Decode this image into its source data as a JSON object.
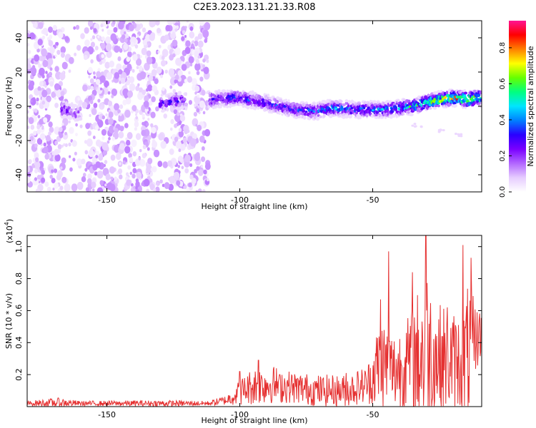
{
  "title": "C2E3.2023.131.21.33.R08",
  "colors": {
    "snr_line": "#e53030",
    "axis": "#000000",
    "colormap": [
      "#ffffff",
      "#e6ccff",
      "#b266ff",
      "#7a00ff",
      "#2a00ff",
      "#0080ff",
      "#00e5ff",
      "#00ff80",
      "#66ff00",
      "#ffff00",
      "#ff8000",
      "#ff0000",
      "#ff1493"
    ]
  },
  "chart_data": [
    {
      "type": "heatmap",
      "title": "C2E3.2023.131.21.33.R08",
      "xlabel": "Height of straight line (km)",
      "ylabel": "Frequency (Hz)",
      "xlim": [
        -180,
        -9
      ],
      "ylim": [
        -50,
        50
      ],
      "x_ticks": [
        -150,
        -100,
        -50
      ],
      "x_tick_labels": [
        "-150",
        "-100",
        "-50"
      ],
      "y_ticks": [
        -40,
        -20,
        0,
        20,
        40
      ],
      "y_tick_labels": [
        "-40",
        "-20",
        "0",
        "20",
        "40"
      ],
      "colorbar": {
        "label": "Normalized spectral amplitude",
        "range": [
          0,
          0.95
        ],
        "ticks": [
          0.0,
          0.2,
          0.4,
          0.6,
          0.8
        ],
        "tick_labels": [
          "0.0",
          "0.2",
          "0.4",
          "0.6",
          "0.8"
        ]
      },
      "noise_region": {
        "x": [
          -180,
          -112
        ],
        "freq": [
          -50,
          50
        ],
        "amplitude_range": [
          0.02,
          0.14
        ]
      },
      "ridge": [
        {
          "x": -165,
          "freq": -2,
          "amp": 0.3
        },
        {
          "x": -162,
          "freq": -4,
          "amp": 0.25
        },
        {
          "x": -128,
          "freq": 2,
          "amp": 0.3
        },
        {
          "x": -124,
          "freq": 3,
          "amp": 0.3
        },
        {
          "x": -110,
          "freq": 4,
          "amp": 0.35
        },
        {
          "x": -100,
          "freq": 5,
          "amp": 0.4
        },
        {
          "x": -90,
          "freq": 2,
          "amp": 0.35
        },
        {
          "x": -80,
          "freq": -2,
          "amp": 0.35
        },
        {
          "x": -72,
          "freq": -3,
          "amp": 0.4
        },
        {
          "x": -65,
          "freq": -1,
          "amp": 0.45
        },
        {
          "x": -55,
          "freq": -2,
          "amp": 0.4
        },
        {
          "x": -45,
          "freq": -2,
          "amp": 0.45
        },
        {
          "x": -35,
          "freq": 0,
          "amp": 0.55
        },
        {
          "x": -28,
          "freq": 3,
          "amp": 0.7
        },
        {
          "x": -20,
          "freq": 5,
          "amp": 0.85
        },
        {
          "x": -14,
          "freq": 4,
          "amp": 0.8
        },
        {
          "x": -10,
          "freq": 5,
          "amp": 0.75
        }
      ],
      "ridge_halfwidth_hz": 3,
      "faint_trail": [
        {
          "x": -33,
          "freq": -11
        },
        {
          "x": -25,
          "freq": -14
        },
        {
          "x": -18,
          "freq": -17
        }
      ]
    },
    {
      "type": "line",
      "xlabel": "Height of straight line (km)",
      "ylabel": "SNR (10 * v/v)",
      "y_multiplier": "(x10",
      "y_multiplier_exp": "4",
      "y_multiplier_close": ")",
      "xlim": [
        -180,
        -9
      ],
      "ylim": [
        0,
        1.07
      ],
      "x_ticks": [
        -150,
        -100,
        -50
      ],
      "x_tick_labels": [
        "-150",
        "-100",
        "-50"
      ],
      "y_ticks": [
        0.2,
        0.4,
        0.6,
        0.8,
        1.0
      ],
      "y_tick_labels": [
        "0.2",
        "0.4",
        "0.6",
        "0.8",
        "1.0"
      ],
      "series": [
        {
          "values_envelope": [
            {
              "x": -180,
              "mean": 0.02,
              "amp": 0.015
            },
            {
              "x": -168,
              "mean": 0.025,
              "amp": 0.03
            },
            {
              "x": -160,
              "mean": 0.02,
              "amp": 0.015
            },
            {
              "x": -130,
              "mean": 0.02,
              "amp": 0.02
            },
            {
              "x": -112,
              "mean": 0.02,
              "amp": 0.015
            },
            {
              "x": -105,
              "mean": 0.04,
              "amp": 0.03
            },
            {
              "x": -100,
              "mean": 0.09,
              "amp": 0.08
            },
            {
              "x": -95,
              "mean": 0.13,
              "amp": 0.12
            },
            {
              "x": -88,
              "mean": 0.14,
              "amp": 0.12
            },
            {
              "x": -80,
              "mean": 0.12,
              "amp": 0.1
            },
            {
              "x": -70,
              "mean": 0.1,
              "amp": 0.1
            },
            {
              "x": -60,
              "mean": 0.1,
              "amp": 0.1
            },
            {
              "x": -52,
              "mean": 0.14,
              "amp": 0.12
            },
            {
              "x": -47,
              "mean": 0.28,
              "amp": 0.3
            },
            {
              "x": -42,
              "mean": 0.22,
              "amp": 0.25
            },
            {
              "x": -36,
              "mean": 0.28,
              "amp": 0.3
            },
            {
              "x": -30,
              "mean": 0.35,
              "amp": 0.55
            },
            {
              "x": -25,
              "mean": 0.3,
              "amp": 0.35
            },
            {
              "x": -18,
              "mean": 0.28,
              "amp": 0.3
            },
            {
              "x": -14,
              "mean": 0.32,
              "amp": 0.45
            },
            {
              "x": -10,
              "mean": 0.45,
              "amp": 0.15
            }
          ],
          "peaks": [
            {
              "x": -100,
              "y": 0.22
            },
            {
              "x": -93,
              "y": 0.29
            },
            {
              "x": -85,
              "y": 0.2
            },
            {
              "x": -60,
              "y": 0.21
            },
            {
              "x": -47,
              "y": 0.67
            },
            {
              "x": -44,
              "y": 0.97
            },
            {
              "x": -30,
              "y": 1.07
            },
            {
              "x": -35,
              "y": 0.84
            },
            {
              "x": -22,
              "y": 0.62
            },
            {
              "x": -16,
              "y": 1.01
            },
            {
              "x": -13,
              "y": 0.93
            },
            {
              "x": -10,
              "y": 0.55
            }
          ],
          "sample_count": 900
        }
      ]
    }
  ]
}
